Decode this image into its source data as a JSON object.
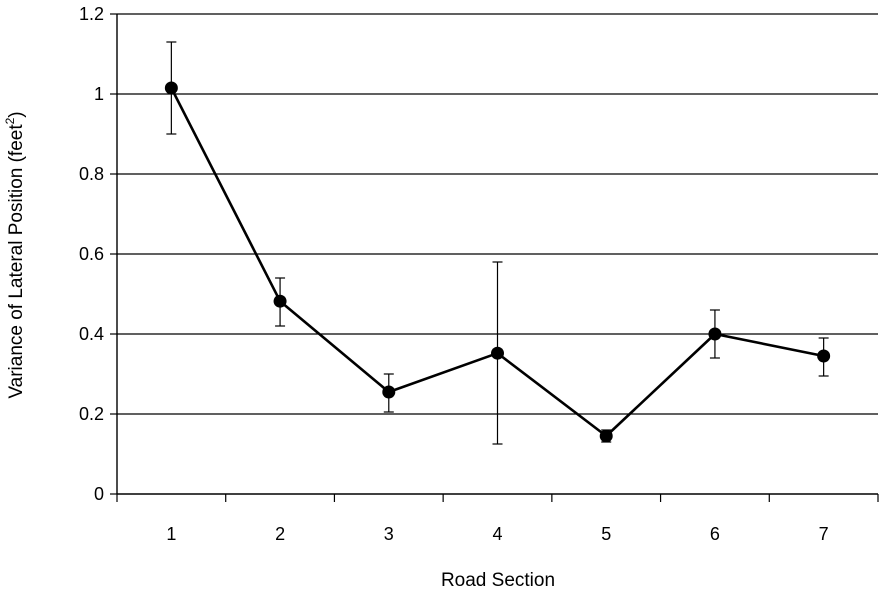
{
  "chart_data": {
    "type": "line",
    "xlabel": "Road Section",
    "ylabel": {
      "main": "Variance of Lateral Position (feet",
      "superscript": "2",
      "suffix": ")"
    },
    "categories": [
      "1",
      "2",
      "3",
      "4",
      "5",
      "6",
      "7"
    ],
    "series": [
      {
        "values": [
          1.015,
          0.482,
          0.255,
          0.352,
          0.145,
          0.4,
          0.345
        ],
        "error_upper": [
          1.13,
          0.54,
          0.3,
          0.58,
          0.16,
          0.46,
          0.39
        ],
        "error_lower": [
          0.9,
          0.42,
          0.205,
          0.125,
          0.13,
          0.34,
          0.295
        ]
      }
    ],
    "ylim": [
      0,
      1.2
    ],
    "yticks": [
      "0",
      "0.2",
      "0.4",
      "0.6",
      "0.8",
      "1",
      "1.2"
    ],
    "ytick_values": [
      0,
      0.2,
      0.4,
      0.6,
      0.8,
      1.0,
      1.2
    ],
    "grid": "horizontal",
    "colors": {
      "line": "#000000",
      "marker": "#000000",
      "grid": "#000000",
      "axis": "#000000"
    }
  }
}
